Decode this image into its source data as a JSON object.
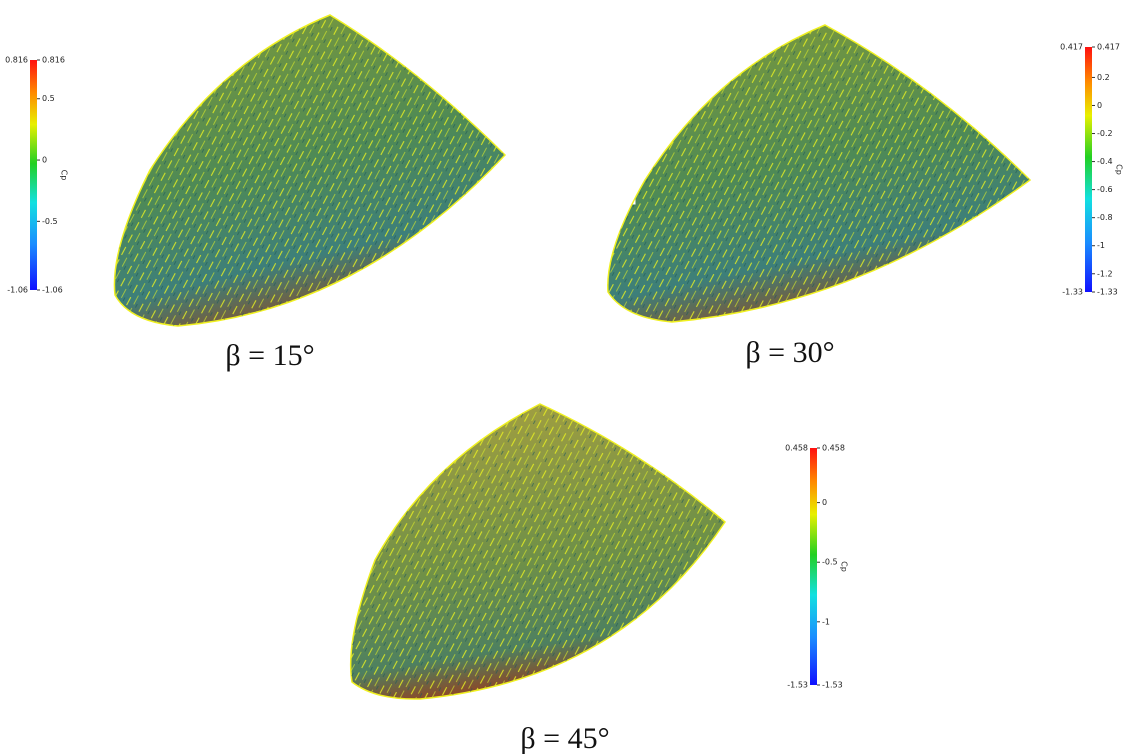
{
  "panels": [
    {
      "label": "β = 15°",
      "colorbar": {
        "title": "Cp",
        "range": [
          -1.06,
          0.816
        ],
        "ticks": [
          0.816,
          0.5,
          0,
          -0.5,
          -1.06
        ]
      }
    },
    {
      "label": "β = 30°",
      "colorbar": {
        "title": "Cp",
        "range": [
          -1.33,
          0.417
        ],
        "ticks": [
          0.417,
          0.2,
          0,
          -0.2,
          -0.4,
          -0.6,
          -0.8,
          -1,
          -1.2,
          -1.33
        ]
      }
    },
    {
      "label": "β = 45°",
      "colorbar": {
        "title": "Cp",
        "range": [
          -1.53,
          0.458
        ],
        "ticks": [
          0.458,
          0,
          -0.5,
          -1,
          -1.53
        ]
      }
    }
  ]
}
